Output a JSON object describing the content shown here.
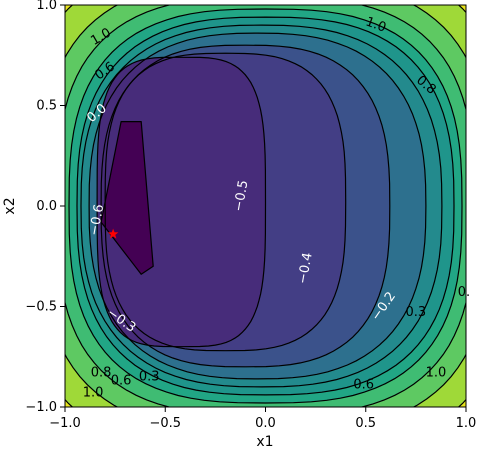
{
  "chart_data": {
    "type": "contour",
    "title": "",
    "xlabel": "x1",
    "ylabel": "x2",
    "xlim": [
      -1.0,
      1.0
    ],
    "ylim": [
      -1.0,
      1.0
    ],
    "x_ticks": [
      "−1.0",
      "−0.5",
      "0.0",
      "0.5",
      "1.0"
    ],
    "y_ticks": [
      "−1.0",
      "−0.5",
      "0.0",
      "0.5",
      "1.0"
    ],
    "grid": false,
    "levels": [
      -0.6,
      -0.5,
      -0.4,
      -0.3,
      -0.2,
      0.0,
      0.2,
      0.3,
      0.6,
      0.8,
      1.0
    ],
    "colormap": "viridis",
    "contour_labels": [
      {
        "text": "1.0",
        "x": -0.82,
        "y": 0.84
      },
      {
        "text": "0.6",
        "x": -0.8,
        "y": 0.67
      },
      {
        "text": "0.0",
        "x": -0.84,
        "y": 0.46
      },
      {
        "text": "−0.6",
        "x": -0.84,
        "y": -0.07
      },
      {
        "text": "−0.5",
        "x": -0.12,
        "y": 0.05
      },
      {
        "text": "−0.4",
        "x": 0.2,
        "y": -0.31
      },
      {
        "text": "−0.3",
        "x": -0.72,
        "y": -0.57
      },
      {
        "text": "−0.2",
        "x": 0.59,
        "y": -0.5
      },
      {
        "text": "0.3",
        "x": 0.75,
        "y": -0.53
      },
      {
        "text": "0.3",
        "x": -0.58,
        "y": -0.85
      },
      {
        "text": "0.6",
        "x": -0.72,
        "y": -0.87
      },
      {
        "text": "0.8",
        "x": -0.82,
        "y": -0.83
      },
      {
        "text": "1.0",
        "x": -0.86,
        "y": -0.93
      },
      {
        "text": "0.6",
        "x": 0.49,
        "y": -0.89
      },
      {
        "text": "1.0",
        "x": 0.85,
        "y": -0.83
      },
      {
        "text": "0.8",
        "x": 0.8,
        "y": 0.6
      },
      {
        "text": "1.0",
        "x": 0.55,
        "y": 0.9
      },
      {
        "text": "0.",
        "x": 0.99,
        "y": -0.43
      }
    ],
    "minimum_marker": {
      "x": -0.76,
      "y": -0.14,
      "shape": "star",
      "color": "#ff0000"
    },
    "colors": {
      "yellow": "#e8e41d",
      "darkest": "#440154"
    }
  }
}
